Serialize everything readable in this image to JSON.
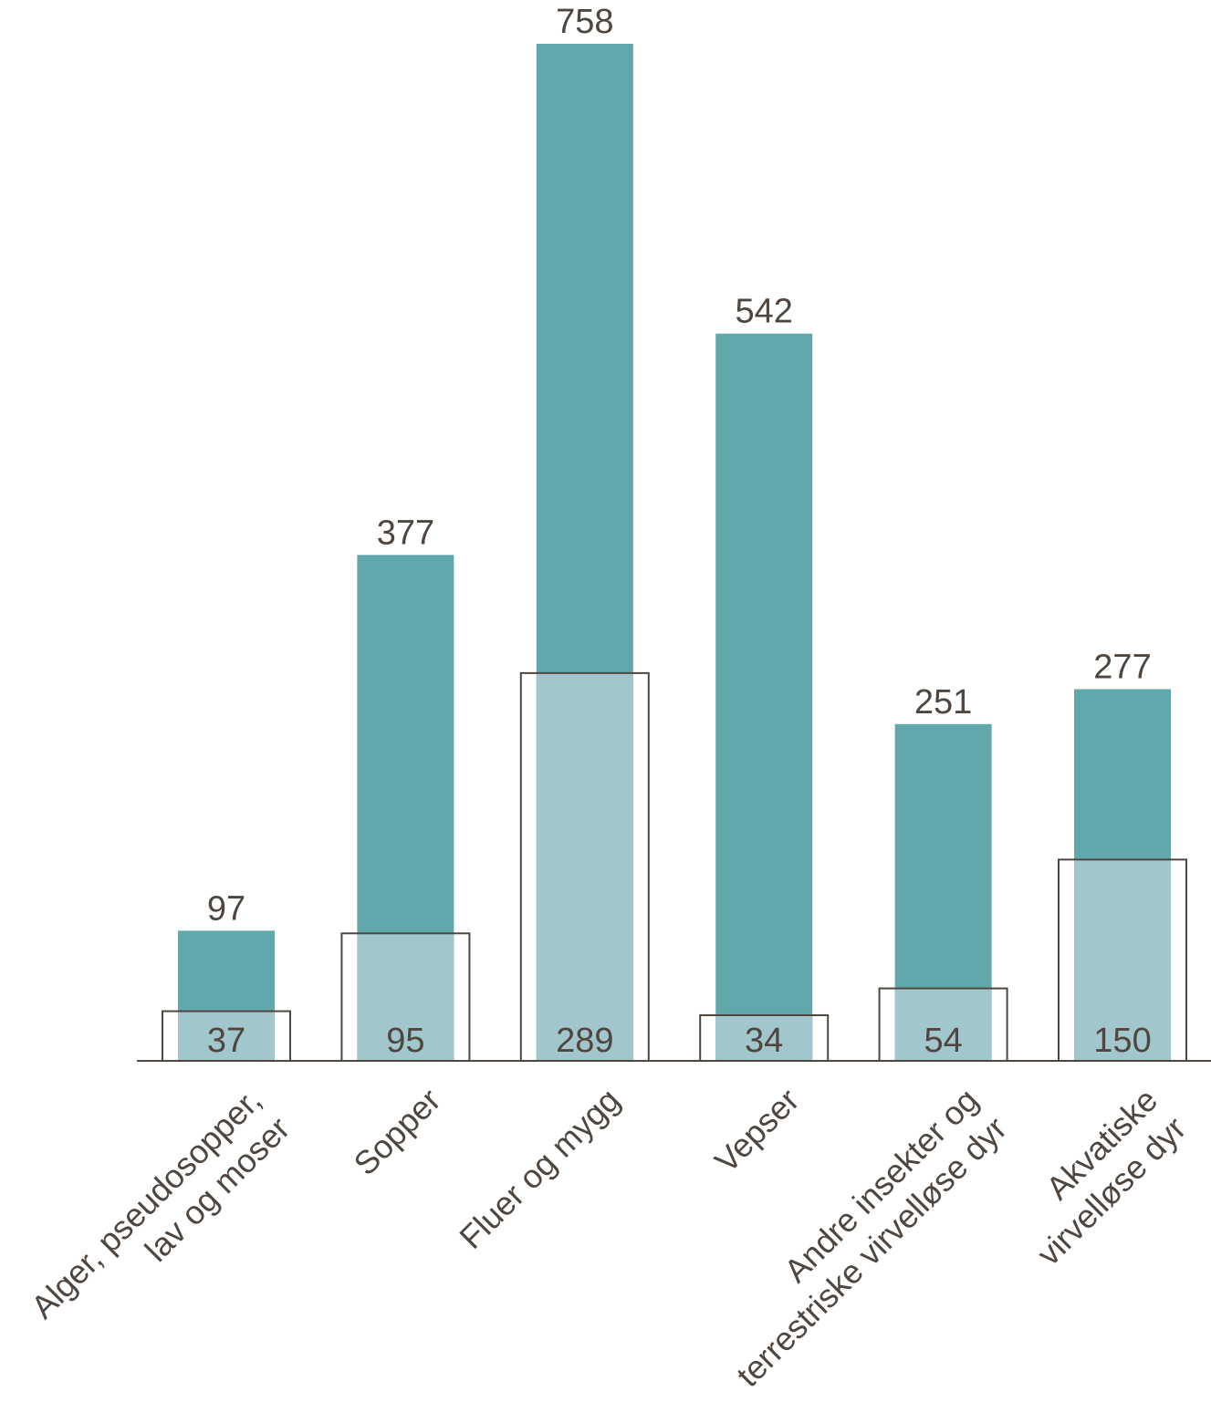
{
  "colors": {
    "total_bar": "#60a8ac",
    "subset_bar": "#a1c6cb",
    "subset_outline": "#4f4640",
    "axis": "#4f4640",
    "text": "#4f4640"
  },
  "chart_data": {
    "type": "bar",
    "title": "",
    "xlabel": "",
    "ylabel": "",
    "ylim": [
      0,
      758
    ],
    "grid": false,
    "categories": [
      [
        "Alger, pseudosopper,",
        "lav og moser"
      ],
      [
        "Sopper"
      ],
      [
        "Fluer og mygg"
      ],
      [
        "Vepser"
      ],
      [
        "Andre insekter og",
        "terrestriske virvelløse dyr"
      ],
      [
        "Akvatiske",
        "virvelløse dyr"
      ]
    ],
    "series": [
      {
        "values": [
          97,
          377,
          758,
          542,
          251,
          277
        ]
      },
      {
        "values": [
          37,
          95,
          289,
          34,
          54,
          150
        ]
      }
    ]
  }
}
